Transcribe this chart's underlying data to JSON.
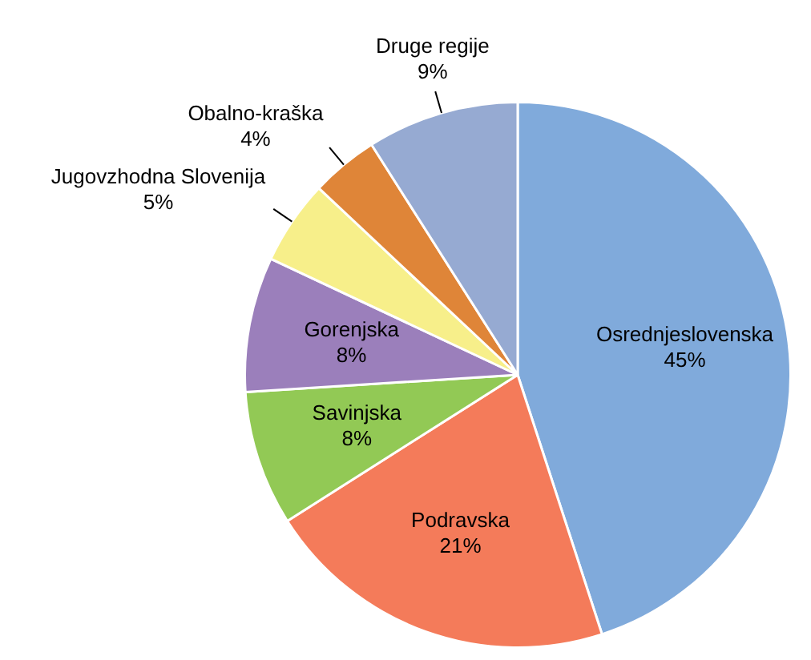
{
  "chart_data": {
    "type": "pie",
    "categories": [
      "Osrednjeslovenska",
      "Podravska",
      "Savinjska",
      "Gorenjska",
      "Jugovzhodna Slovenija",
      "Obalno-kraška",
      "Druge regije"
    ],
    "values": [
      45,
      21,
      8,
      8,
      5,
      4,
      9
    ],
    "colors": [
      "#80aadb",
      "#f47b5a",
      "#92c955",
      "#9b7fbb",
      "#f7ef8a",
      "#df8538",
      "#96aad2"
    ],
    "value_labels": [
      "45%",
      "21%",
      "8%",
      "8%",
      "5%",
      "4%",
      "9%"
    ],
    "legend": false
  }
}
